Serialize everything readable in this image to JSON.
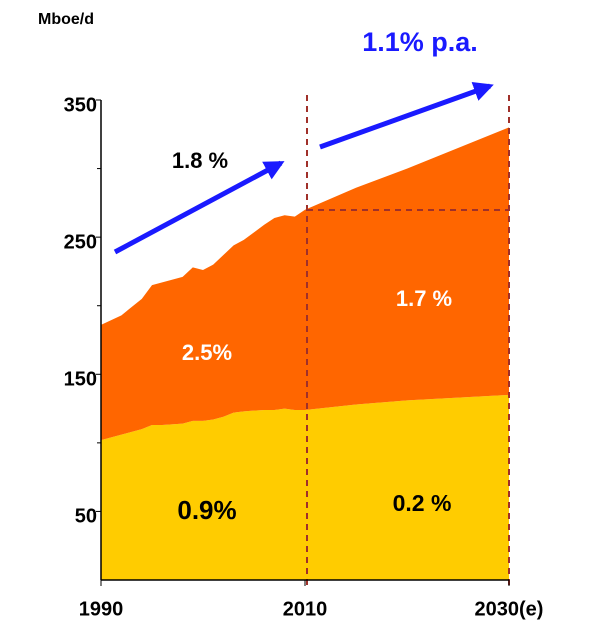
{
  "chart_data": {
    "type": "stacked_area",
    "y_label": "Mboe/d",
    "annotations": [
      "1.1% p.a.",
      "1.8 %",
      "2.5%",
      "1.7 %",
      "0.9%",
      "0.2 %"
    ],
    "x": [
      1990,
      1992,
      1994,
      1995,
      1996,
      1998,
      1999,
      2000,
      2001,
      2002,
      2003,
      2004,
      2006,
      2007,
      2008,
      2009,
      2010,
      2015,
      2020,
      2025,
      2030
    ],
    "series": [
      {
        "color": "#ffcc00",
        "values": [
          102,
          106,
          110,
          113,
          113,
          114,
          116,
          116,
          117,
          119,
          122,
          123,
          124,
          124,
          125,
          124,
          124,
          128,
          131,
          133,
          135
        ]
      },
      {
        "color": "#ff6600",
        "values": [
          84,
          87,
          95,
          102,
          104,
          107,
          112,
          110,
          113,
          118,
          122,
          125,
          135,
          140,
          141,
          141,
          146,
          158,
          169,
          182,
          195
        ]
      }
    ],
    "xlim": [
      1990,
      2030
    ],
    "xticks": [
      1990,
      2010,
      {
        "value": 2030,
        "label": "2030(e)"
      }
    ],
    "ylim": [
      0,
      350
    ],
    "yticks": [
      50,
      150,
      250,
      350
    ],
    "minor_yticks": [
      100,
      200,
      300
    ]
  }
}
